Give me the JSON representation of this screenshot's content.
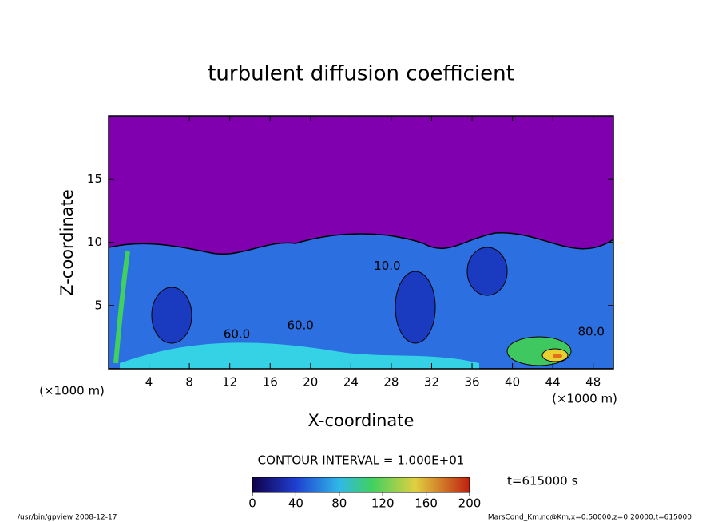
{
  "chart_data": {
    "type": "contour",
    "title": "turbulent diffusion coefficient",
    "xlabel": "X-coordinate",
    "ylabel": "Z-coordinate",
    "x_unit": "(×1000 m)",
    "y_unit": "(×1000 m)",
    "xlim": [
      0,
      50
    ],
    "xticks": [
      4,
      8,
      12,
      16,
      20,
      24,
      28,
      32,
      36,
      40,
      44,
      48
    ],
    "ylim": [
      0,
      20
    ],
    "yticks": [
      5,
      10,
      15
    ],
    "contour_labels": [
      {
        "x": 12.7,
        "z": 2.7,
        "value": 60,
        "label": "60.0"
      },
      {
        "x": 19,
        "z": 3.4,
        "value": 60,
        "label": "60.0"
      },
      {
        "x": 27.6,
        "z": 8.1,
        "value": 10,
        "label": "10.0"
      },
      {
        "x": 47.8,
        "z": 2.9,
        "value": 80,
        "label": "80.0"
      }
    ],
    "contour_interval_label": "CONTOUR INTERVAL = 1.000E+01",
    "time_label": "t=615000 s",
    "colorbar": {
      "lim": [
        0,
        200
      ],
      "ticks": [
        0,
        40,
        80,
        120,
        160,
        200
      ]
    },
    "footer_left": "/usr/bin/gpview   2008-12-17",
    "footer_right": "MarsCond_Km.nc@Km,x=0:50000,z=0:20000,t=615000"
  }
}
